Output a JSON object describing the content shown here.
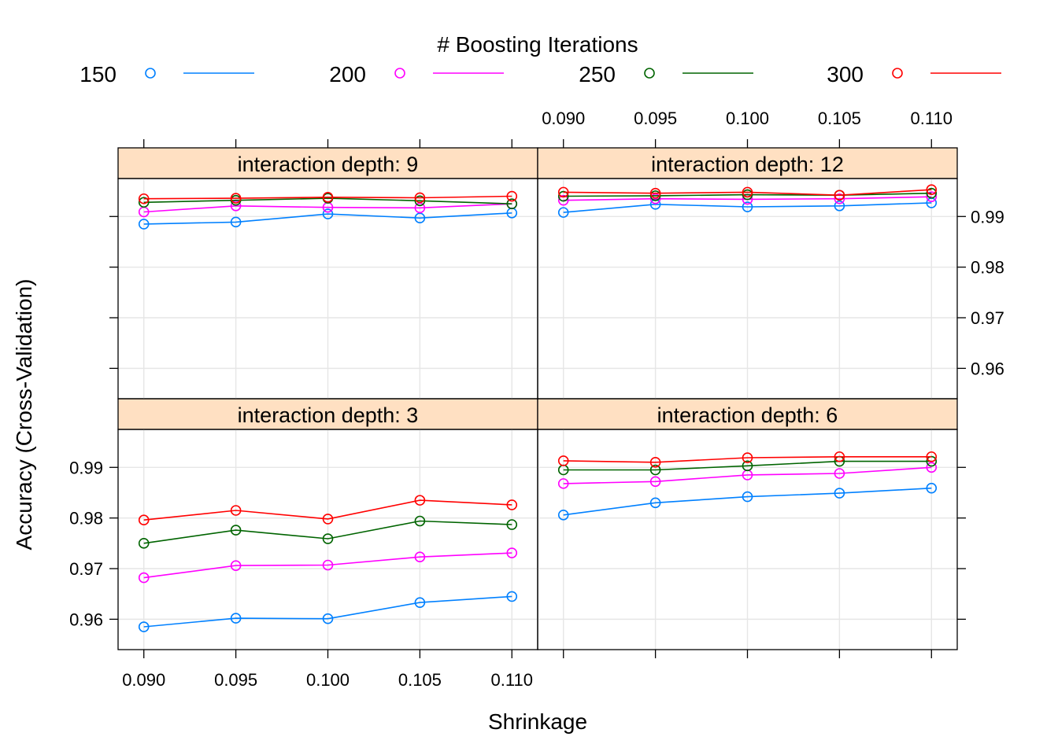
{
  "chart_data": {
    "type": "line",
    "xlabel": "Shrinkage",
    "ylabel": "Accuracy (Cross-Validation)",
    "legend": {
      "title": "# Boosting Iterations",
      "placement": "top",
      "entries": [
        {
          "label": "150",
          "color": "#0080ff"
        },
        {
          "label": "200",
          "color": "#ff00ff"
        },
        {
          "label": "250",
          "color": "#006400"
        },
        {
          "label": "300",
          "color": "#ff0000"
        }
      ]
    },
    "x": [
      0.09,
      0.095,
      0.1,
      0.105,
      0.11
    ],
    "x_tick_labels": [
      "0.090",
      "0.095",
      "0.100",
      "0.105",
      "0.110"
    ],
    "y_ticks": [
      0.96,
      0.97,
      0.98,
      0.99
    ],
    "y_tick_labels": [
      "0.96",
      "0.97",
      "0.98",
      "0.99"
    ],
    "ylim": [
      0.954,
      0.9975
    ],
    "xlim": [
      0.0886,
      0.1114
    ],
    "grid": true,
    "panels": [
      {
        "title": "interaction depth:  3",
        "series": [
          {
            "name": "150",
            "values": [
              0.9585,
              0.9602,
              0.9601,
              0.9633,
              0.9645
            ]
          },
          {
            "name": "200",
            "values": [
              0.9682,
              0.9706,
              0.9707,
              0.9723,
              0.9731
            ]
          },
          {
            "name": "250",
            "values": [
              0.975,
              0.9776,
              0.9759,
              0.9794,
              0.9787
            ]
          },
          {
            "name": "300",
            "values": [
              0.9796,
              0.9815,
              0.9798,
              0.9835,
              0.9826
            ]
          }
        ]
      },
      {
        "title": "interaction depth:  6",
        "series": [
          {
            "name": "150",
            "values": [
              0.9806,
              0.983,
              0.9842,
              0.9849,
              0.9859
            ]
          },
          {
            "name": "200",
            "values": [
              0.9868,
              0.9872,
              0.9885,
              0.9888,
              0.99
            ]
          },
          {
            "name": "250",
            "values": [
              0.9895,
              0.9895,
              0.9903,
              0.9912,
              0.9912
            ]
          },
          {
            "name": "300",
            "values": [
              0.9913,
              0.991,
              0.9919,
              0.9921,
              0.9921
            ]
          }
        ]
      },
      {
        "title": "interaction depth:  9",
        "series": [
          {
            "name": "150",
            "values": [
              0.9885,
              0.9889,
              0.9905,
              0.9897,
              0.9907
            ]
          },
          {
            "name": "200",
            "values": [
              0.9909,
              0.9921,
              0.9918,
              0.9917,
              0.9925
            ]
          },
          {
            "name": "250",
            "values": [
              0.9928,
              0.9932,
              0.9936,
              0.9931,
              0.9925
            ]
          },
          {
            "name": "300",
            "values": [
              0.9935,
              0.9936,
              0.9938,
              0.9937,
              0.994
            ]
          }
        ]
      },
      {
        "title": "interaction depth: 12",
        "series": [
          {
            "name": "150",
            "values": [
              0.9908,
              0.9924,
              0.9919,
              0.9921,
              0.9927
            ]
          },
          {
            "name": "200",
            "values": [
              0.9932,
              0.9935,
              0.9934,
              0.9935,
              0.9939
            ]
          },
          {
            "name": "250",
            "values": [
              0.994,
              0.9941,
              0.9943,
              0.9942,
              0.9946
            ]
          },
          {
            "name": "300",
            "values": [
              0.9948,
              0.9946,
              0.9948,
              0.9942,
              0.9953
            ]
          }
        ]
      }
    ]
  }
}
